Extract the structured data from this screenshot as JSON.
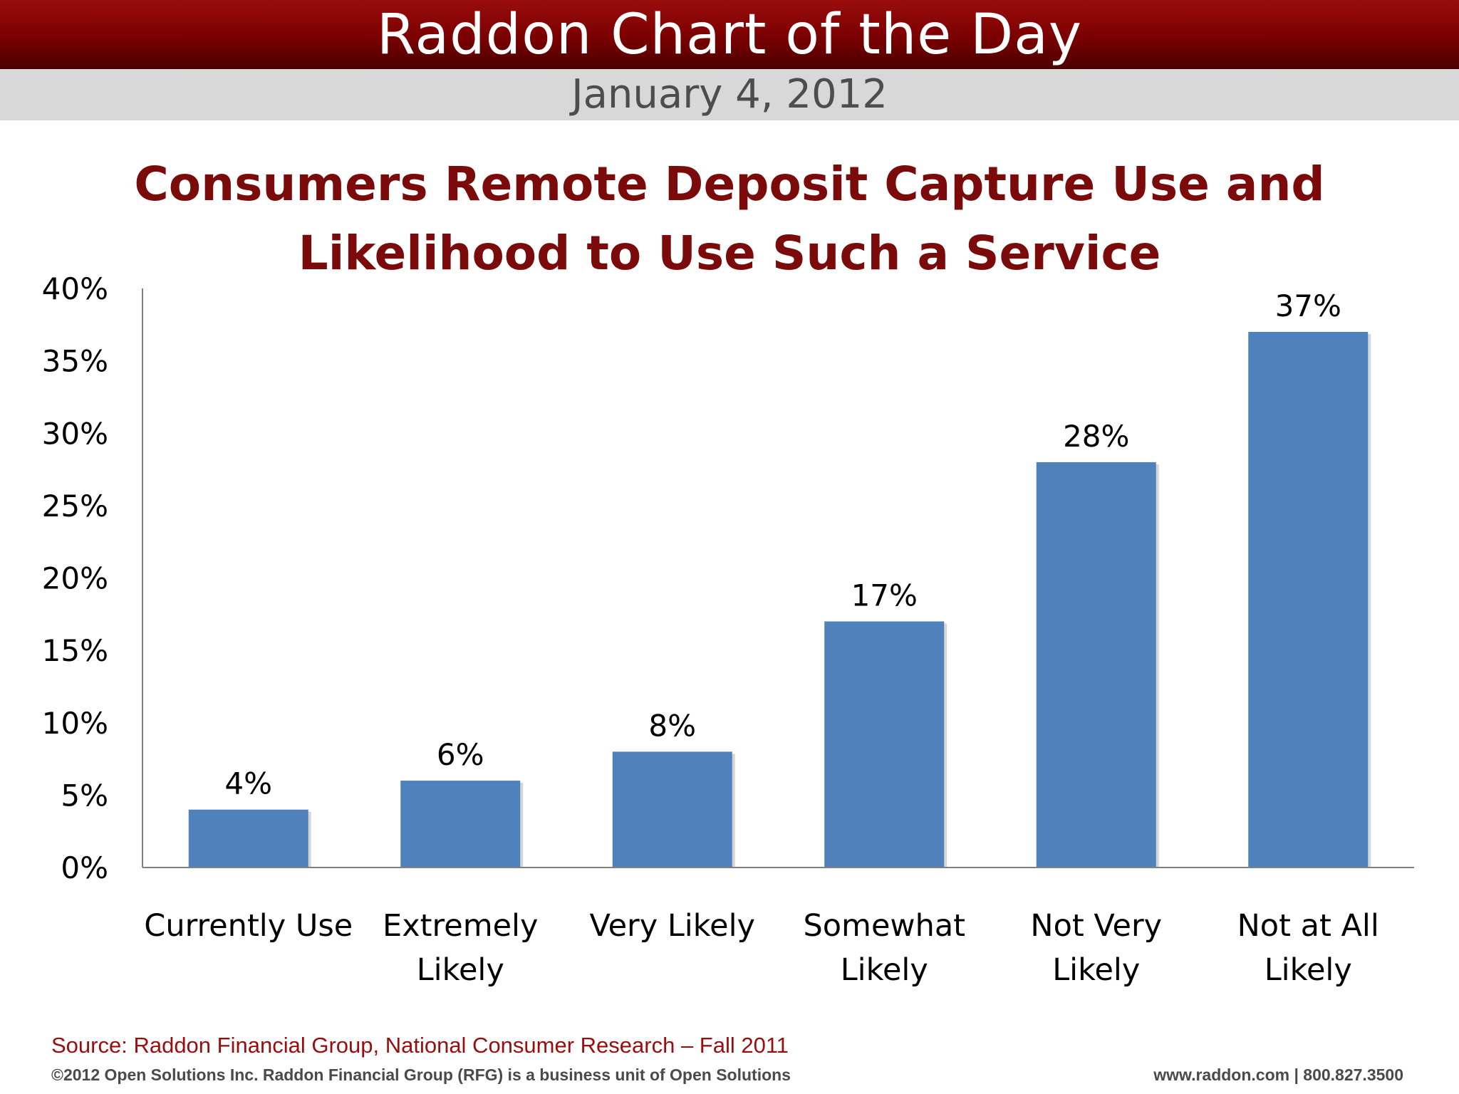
{
  "header": {
    "title": "Raddon Chart of the Day",
    "date": "January 4, 2012"
  },
  "chart_data": {
    "type": "bar",
    "title_lines": [
      "Consumers Remote Deposit Capture Use and",
      "Likelihood to Use Such a Service"
    ],
    "categories": [
      [
        "Currently Use"
      ],
      [
        "Extremely",
        "Likely"
      ],
      [
        "Very Likely"
      ],
      [
        "Somewhat",
        "Likely"
      ],
      [
        "Not Very",
        "Likely"
      ],
      [
        "Not at All",
        "Likely"
      ]
    ],
    "values": [
      4,
      6,
      8,
      17,
      28,
      37
    ],
    "data_labels": [
      "4%",
      "6%",
      "8%",
      "17%",
      "28%",
      "37%"
    ],
    "y_ticks": [
      "0%",
      "5%",
      "10%",
      "15%",
      "20%",
      "25%",
      "30%",
      "35%",
      "40%"
    ],
    "ylim": [
      0,
      40
    ],
    "grid": false,
    "bar_color": "#4f81bd"
  },
  "footer": {
    "source": "Source: Raddon Financial Group, National Consumer Research – Fall 2011",
    "copyright": "©2012 Open Solutions Inc.  Raddon Financial Group (RFG) is a business unit of Open Solutions",
    "contact": "www.raddon.com  |  800.827.3500"
  }
}
